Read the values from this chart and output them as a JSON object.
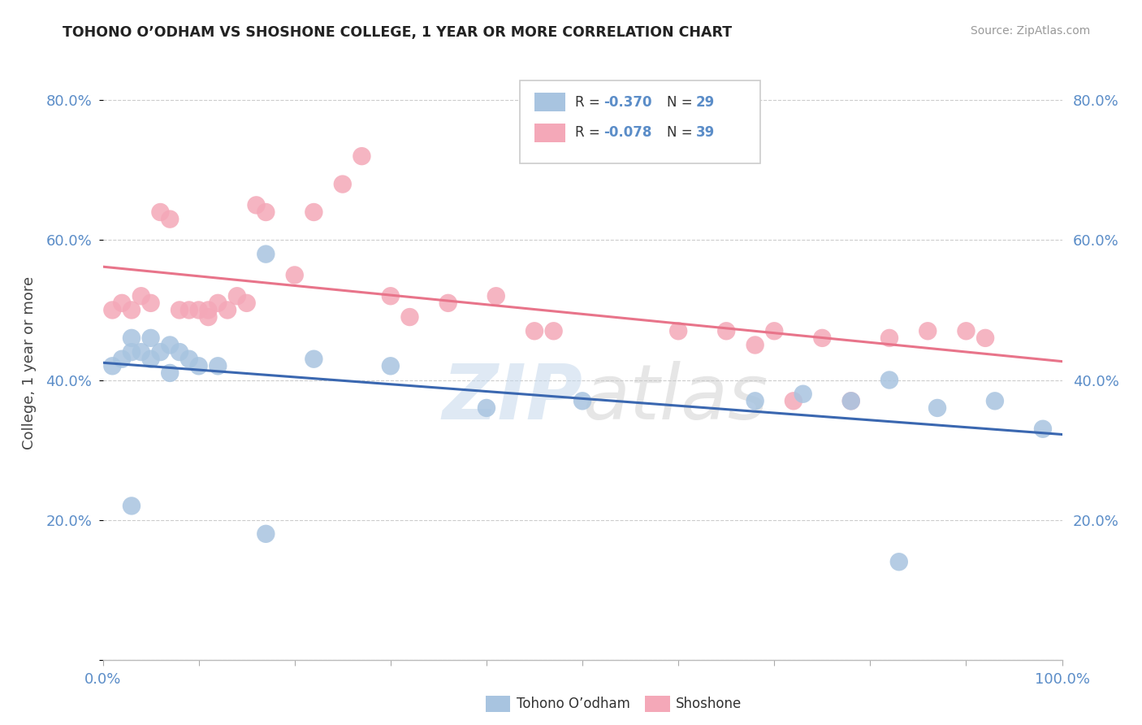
{
  "title": "TOHONO O’ODHAM VS SHOSHONE COLLEGE, 1 YEAR OR MORE CORRELATION CHART",
  "source": "Source: ZipAtlas.com",
  "ylabel": "College, 1 year or more",
  "xlim": [
    0.0,
    1.0
  ],
  "ylim": [
    0.0,
    0.85
  ],
  "x_ticks": [
    0.0,
    0.1,
    0.2,
    0.3,
    0.4,
    0.5,
    0.6,
    0.7,
    0.8,
    0.9,
    1.0
  ],
  "x_tick_labels": [
    "0.0%",
    "",
    "",
    "",
    "",
    "",
    "",
    "",
    "",
    "",
    "100.0%"
  ],
  "y_ticks": [
    0.0,
    0.2,
    0.4,
    0.6,
    0.8
  ],
  "y_tick_labels": [
    "",
    "20.0%",
    "40.0%",
    "60.0%",
    "80.0%"
  ],
  "legend_label_blue": "Tohono O’odham",
  "legend_label_pink": "Shoshone",
  "blue_color": "#A8C4E0",
  "pink_color": "#F4A8B8",
  "blue_line_color": "#3A67B0",
  "pink_line_color": "#E8748A",
  "tick_color": "#5B8DC8",
  "watermark_color": "#D8E8F0",
  "background_color": "#FFFFFF",
  "grid_color": "#CCCCCC",
  "blue_x": [
    0.01,
    0.02,
    0.03,
    0.03,
    0.04,
    0.05,
    0.05,
    0.06,
    0.07,
    0.07,
    0.08,
    0.09,
    0.1,
    0.12,
    0.17,
    0.22,
    0.3,
    0.5,
    0.68,
    0.73,
    0.78,
    0.82,
    0.87,
    0.93,
    0.98,
    0.03,
    0.17,
    0.4,
    0.83
  ],
  "blue_y": [
    0.42,
    0.43,
    0.44,
    0.46,
    0.44,
    0.43,
    0.46,
    0.44,
    0.45,
    0.41,
    0.44,
    0.43,
    0.42,
    0.42,
    0.58,
    0.43,
    0.42,
    0.37,
    0.37,
    0.38,
    0.37,
    0.4,
    0.36,
    0.37,
    0.33,
    0.22,
    0.18,
    0.36,
    0.14
  ],
  "pink_x": [
    0.01,
    0.02,
    0.03,
    0.04,
    0.05,
    0.06,
    0.07,
    0.08,
    0.09,
    0.1,
    0.11,
    0.11,
    0.12,
    0.13,
    0.14,
    0.15,
    0.16,
    0.17,
    0.2,
    0.22,
    0.25,
    0.27,
    0.3,
    0.32,
    0.36,
    0.41,
    0.45,
    0.47,
    0.6,
    0.65,
    0.68,
    0.7,
    0.72,
    0.75,
    0.78,
    0.82,
    0.86,
    0.9,
    0.92
  ],
  "pink_y": [
    0.5,
    0.51,
    0.5,
    0.52,
    0.51,
    0.64,
    0.63,
    0.5,
    0.5,
    0.5,
    0.49,
    0.5,
    0.51,
    0.5,
    0.52,
    0.51,
    0.65,
    0.64,
    0.55,
    0.64,
    0.68,
    0.72,
    0.52,
    0.49,
    0.51,
    0.52,
    0.47,
    0.47,
    0.47,
    0.47,
    0.45,
    0.47,
    0.37,
    0.46,
    0.37,
    0.46,
    0.47,
    0.47,
    0.46
  ]
}
